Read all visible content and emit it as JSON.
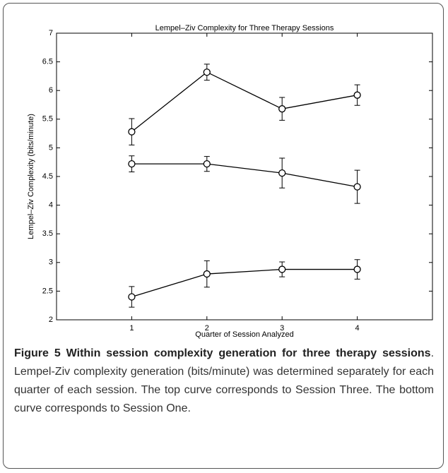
{
  "chart_data": {
    "type": "line",
    "title": "Lempel–Ziv Complexity for Three Therapy Sessions",
    "xlabel": "Quarter of Session Analyzed",
    "ylabel": "Lempel–Ziv Complexity (bits/minute)",
    "x": [
      1,
      2,
      3,
      4
    ],
    "series": [
      {
        "color": "#000000",
        "values": [
          5.28,
          6.32,
          5.68,
          5.92
        ],
        "errors": [
          0.23,
          0.14,
          0.2,
          0.18
        ]
      },
      {
        "color": "#000000",
        "values": [
          4.72,
          4.72,
          4.56,
          4.32
        ],
        "errors": [
          0.14,
          0.13,
          0.26,
          0.29
        ]
      },
      {
        "color": "#000000",
        "values": [
          2.4,
          2.8,
          2.88,
          2.88
        ],
        "errors": [
          0.18,
          0.23,
          0.13,
          0.17
        ]
      }
    ],
    "xlim": [
      0,
      5
    ],
    "xticks": [
      1,
      2,
      3,
      4
    ],
    "ylim": [
      2,
      7
    ],
    "yticks": [
      2,
      2.5,
      3,
      3.5,
      4,
      4.5,
      5,
      5.5,
      6,
      6.5,
      7
    ],
    "grid": false
  },
  "caption": {
    "label": "Figure 5",
    "title": "Within session complexity generation for three therapy sessions",
    "text": ". Lempel-Ziv complexity generation (bits/minute) was determined separately for each quarter of each session. The top curve corresponds to Session Three. The bottom curve corresponds to Session One."
  }
}
